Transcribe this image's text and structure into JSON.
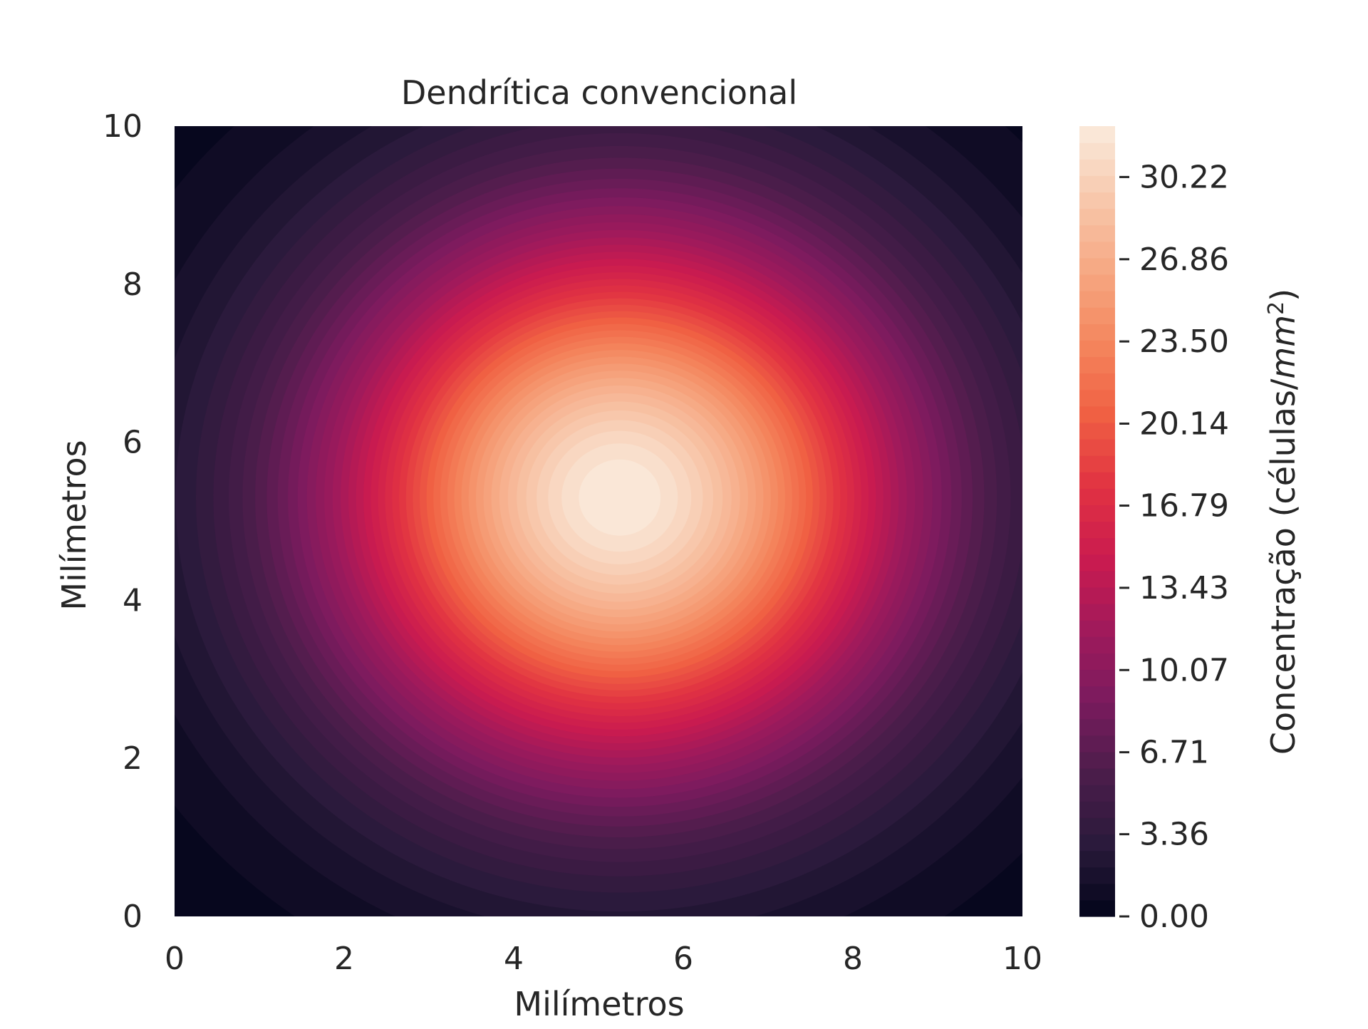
{
  "chart_data": {
    "type": "heatmap",
    "subtype": "filled-contour",
    "title": "Dendrítica convencional",
    "xlabel": "Milímetros",
    "ylabel": "Milímetros",
    "xlim": [
      0,
      10
    ],
    "ylim": [
      0,
      10
    ],
    "xticks": [
      "0",
      "2",
      "4",
      "6",
      "8",
      "10"
    ],
    "yticks": [
      "0",
      "2",
      "4",
      "6",
      "8",
      "10"
    ],
    "grid": false,
    "colormap": "rocket",
    "colormap_stops": [
      "#03051a",
      "#2a1a3b",
      "#4c1d4b",
      "#7a1b5e",
      "#a11a5b",
      "#cb1b4f",
      "#e13342",
      "#f06043",
      "#f4875e",
      "#f6a883",
      "#f8c8ac",
      "#faebdd"
    ],
    "field": {
      "peak_x": 5.25,
      "peak_y": 5.3,
      "peak_value": 32.3,
      "spread_sigma_mm": 2.35,
      "levels": 48
    },
    "colorbar": {
      "label": "Concentração (células/mm²)",
      "label_prefix": "Concentração (células/",
      "label_unit": "mm",
      "label_exp": "2",
      "label_suffix": ")",
      "range": [
        0,
        32.3
      ],
      "ticks": [
        0.0,
        3.36,
        6.71,
        10.07,
        13.43,
        16.79,
        20.14,
        23.5,
        26.86,
        30.22
      ],
      "tick_labels": [
        "0.00",
        "3.36",
        "6.71",
        "10.07",
        "13.43",
        "16.79",
        "20.14",
        "23.50",
        "26.86",
        "30.22"
      ]
    }
  }
}
